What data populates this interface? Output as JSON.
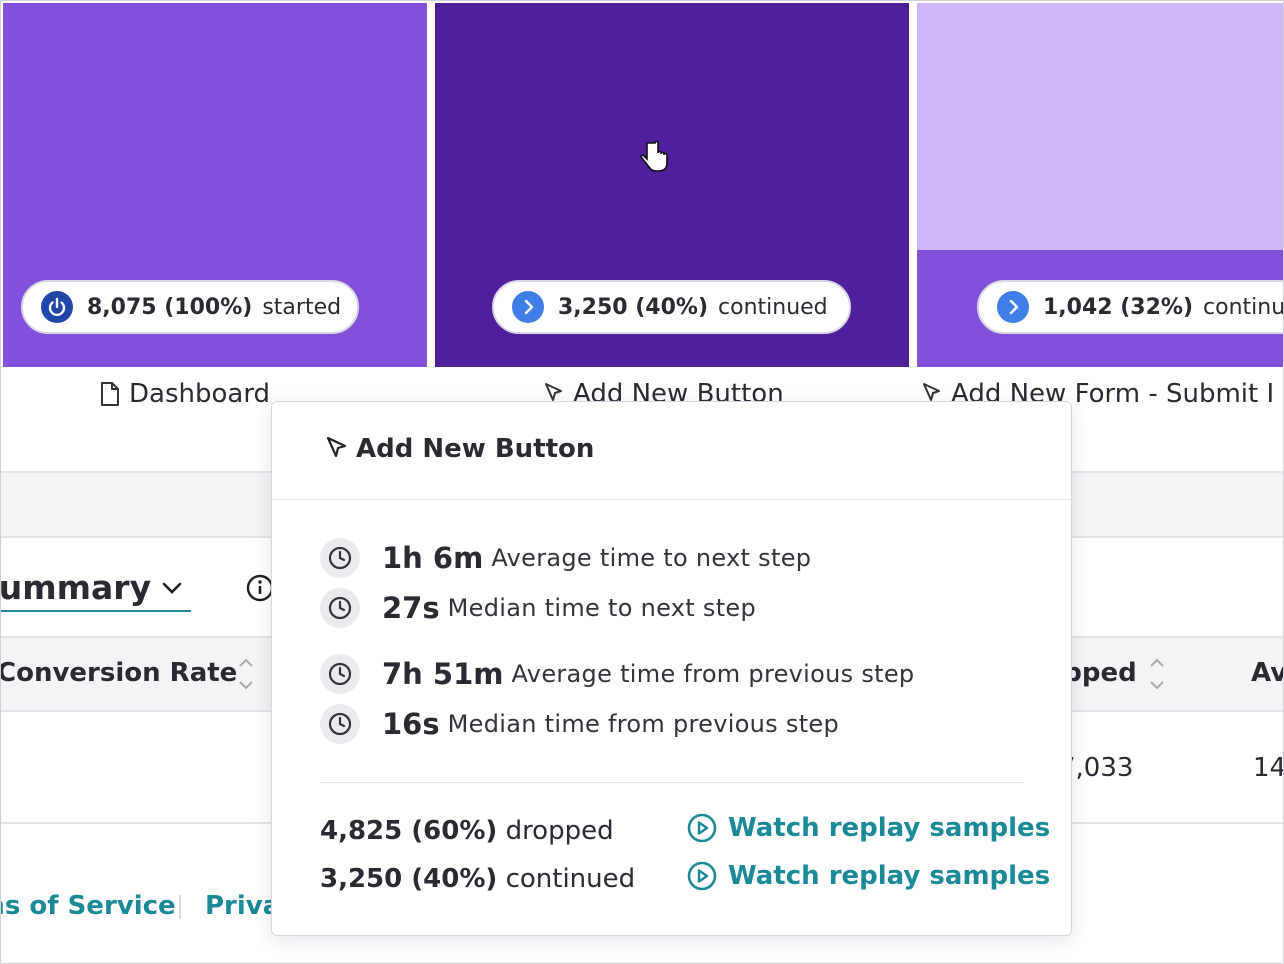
{
  "funnel": {
    "steps": [
      {
        "count": "8,075 (100%)",
        "status": "started",
        "label": "Dashboard"
      },
      {
        "count": "3,250 (40%)",
        "status": "continued",
        "label": "Add New Button"
      },
      {
        "count": "1,042 (32%)",
        "status": "continued",
        "label": "Add New Form - Submit I"
      }
    ]
  },
  "summary": {
    "title": "Summary",
    "columns": [
      "Conversion Rate",
      "Dropped",
      "Av"
    ],
    "row": [
      "7,033",
      "14"
    ]
  },
  "footer": {
    "links": [
      "Terms of Service",
      "Privacy"
    ]
  },
  "tooltip": {
    "title": "Add New Button",
    "stats": [
      {
        "value": "1h 6m",
        "label": "Average time to next step"
      },
      {
        "value": "27s",
        "label": "Median time to next step"
      },
      {
        "value": "7h 51m",
        "label": "Average time from previous step"
      },
      {
        "value": "16s",
        "label": "Median time from previous step"
      }
    ],
    "outcomes": [
      {
        "count": "4,825 (60%)",
        "status": "dropped",
        "action": "Watch replay samples"
      },
      {
        "count": "3,250 (40%)",
        "status": "continued",
        "action": "Watch replay samples"
      }
    ]
  }
}
